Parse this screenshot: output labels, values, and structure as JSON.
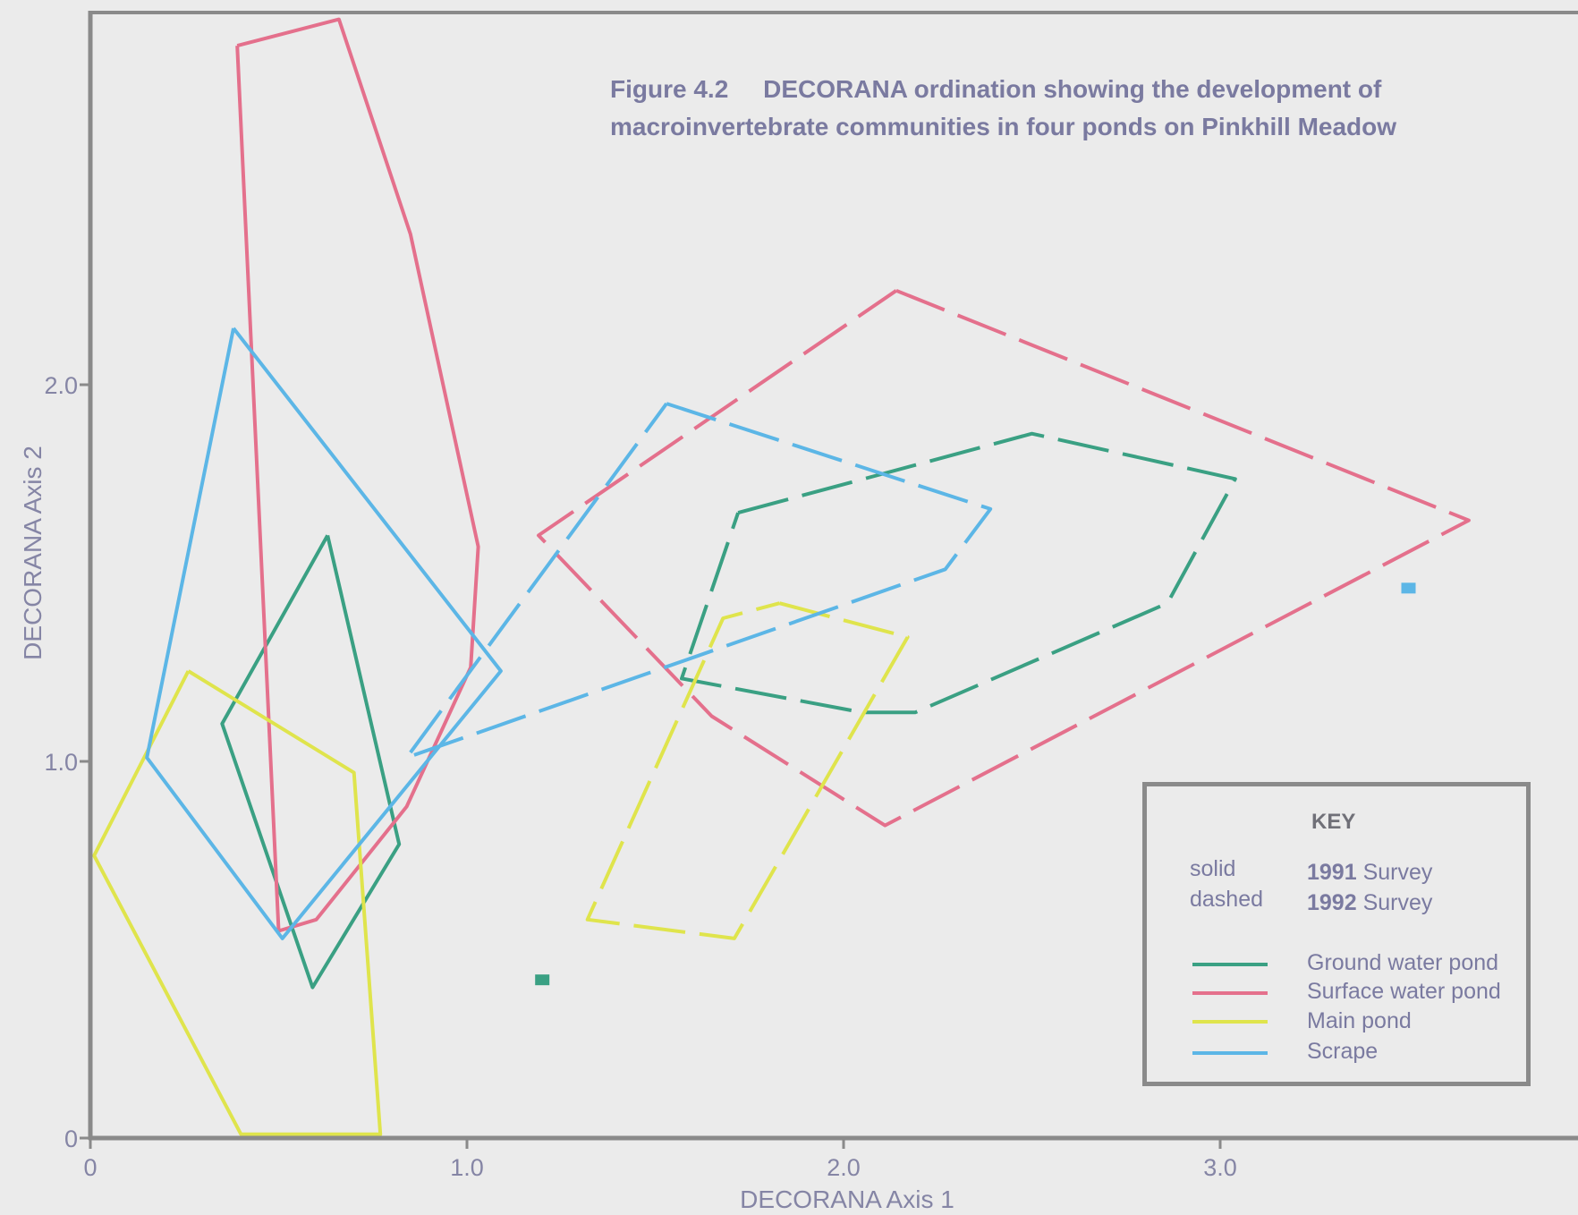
{
  "figure_title_line1": "Figure 4.2     DECORANA ordination showing the development of",
  "figure_title_line2": "macroinvertebrate communities in four ponds on Pinkhill Meadow",
  "chart_data": {
    "type": "line",
    "xlabel": "DECORANA Axis 1",
    "ylabel": "DECORANA Axis 2",
    "xlim": [
      0,
      4.0
    ],
    "ylim": [
      0,
      3.0
    ],
    "x_ticks": [
      0,
      1.0,
      2.0,
      3.0
    ],
    "x_tick_labels": [
      "0",
      "1.0",
      "2.0",
      "3.0"
    ],
    "y_ticks": [
      0,
      1.0,
      2.0
    ],
    "y_tick_labels": [
      "0",
      "1.0",
      "2.0"
    ],
    "grid": false,
    "series": [
      {
        "name": "Ground water pond",
        "survey": "1991 Survey",
        "style": "solid",
        "color": "#3aa083",
        "points": [
          [
            0.63,
            1.6
          ],
          [
            0.82,
            0.78
          ],
          [
            0.59,
            0.4
          ],
          [
            0.35,
            1.1
          ],
          [
            0.63,
            1.6
          ]
        ]
      },
      {
        "name": "Ground water pond",
        "survey": "1992 Survey",
        "style": "dashed",
        "color": "#3aa083",
        "points": [
          [
            1.72,
            1.66
          ],
          [
            2.5,
            1.87
          ],
          [
            3.04,
            1.75
          ],
          [
            2.86,
            1.42
          ],
          [
            2.19,
            1.13
          ],
          [
            2.05,
            1.13
          ],
          [
            1.57,
            1.22
          ],
          [
            1.72,
            1.66
          ]
        ]
      },
      {
        "name": "Surface water pond",
        "survey": "1991 Survey",
        "style": "solid",
        "color": "#e4708c",
        "points": [
          [
            0.39,
            2.9
          ],
          [
            0.66,
            2.97
          ],
          [
            0.85,
            2.4
          ],
          [
            1.03,
            1.57
          ],
          [
            1.01,
            1.25
          ],
          [
            0.84,
            0.88
          ],
          [
            0.6,
            0.58
          ],
          [
            0.5,
            0.55
          ],
          [
            0.39,
            2.9
          ]
        ]
      },
      {
        "name": "Surface water pond",
        "survey": "1992 Survey",
        "style": "dashed",
        "color": "#e4708c",
        "points": [
          [
            2.14,
            2.25
          ],
          [
            3.66,
            1.64
          ],
          [
            2.11,
            0.83
          ],
          [
            1.65,
            1.12
          ],
          [
            1.19,
            1.6
          ],
          [
            2.14,
            2.25
          ]
        ]
      },
      {
        "name": "Main pond",
        "survey": "1991 Survey",
        "style": "solid",
        "color": "#dfe44c",
        "points": [
          [
            0.26,
            1.24
          ],
          [
            0.7,
            0.97
          ],
          [
            0.77,
            0.01
          ],
          [
            0.4,
            0.01
          ],
          [
            0.01,
            0.75
          ],
          [
            0.26,
            1.24
          ]
        ]
      },
      {
        "name": "Main pond",
        "survey": "1992 Survey",
        "style": "dashed",
        "color": "#dfe44c",
        "points": [
          [
            1.83,
            1.42
          ],
          [
            2.17,
            1.33
          ],
          [
            1.71,
            0.53
          ],
          [
            1.32,
            0.58
          ],
          [
            1.68,
            1.38
          ],
          [
            1.83,
            1.42
          ]
        ]
      },
      {
        "name": "Scrape",
        "survey": "1991 Survey",
        "style": "solid",
        "color": "#5cb6e6",
        "points": [
          [
            0.38,
            2.15
          ],
          [
            1.09,
            1.24
          ],
          [
            0.51,
            0.53
          ],
          [
            0.15,
            1.01
          ],
          [
            0.38,
            2.15
          ]
        ]
      },
      {
        "name": "Scrape",
        "survey": "1992 Survey",
        "style": "dashed",
        "color": "#5cb6e6",
        "points": [
          [
            1.53,
            1.95
          ],
          [
            2.39,
            1.67
          ],
          [
            2.27,
            1.51
          ],
          [
            0.84,
            1.01
          ],
          [
            1.53,
            1.95
          ]
        ]
      }
    ],
    "markers": [
      {
        "x": 1.2,
        "y": 0.42,
        "color": "#3aa083"
      },
      {
        "x": 3.5,
        "y": 1.46,
        "color": "#5cb6e6"
      }
    ],
    "legend": {
      "placement": "bottom-right",
      "heading": "KEY",
      "style_entries": [
        {
          "style": "solid",
          "label_bold": "1991",
          "label_rest": " Survey"
        },
        {
          "style": "dashed",
          "label_bold": "1992",
          "label_rest": " Survey"
        }
      ],
      "color_entries": [
        {
          "label": "Ground water pond",
          "color": "#3aa083"
        },
        {
          "label": "Surface water pond",
          "color": "#e4708c"
        },
        {
          "label": "Main pond",
          "color": "#dfe44c"
        },
        {
          "label": "Scrape",
          "color": "#5cb6e6"
        }
      ]
    }
  }
}
